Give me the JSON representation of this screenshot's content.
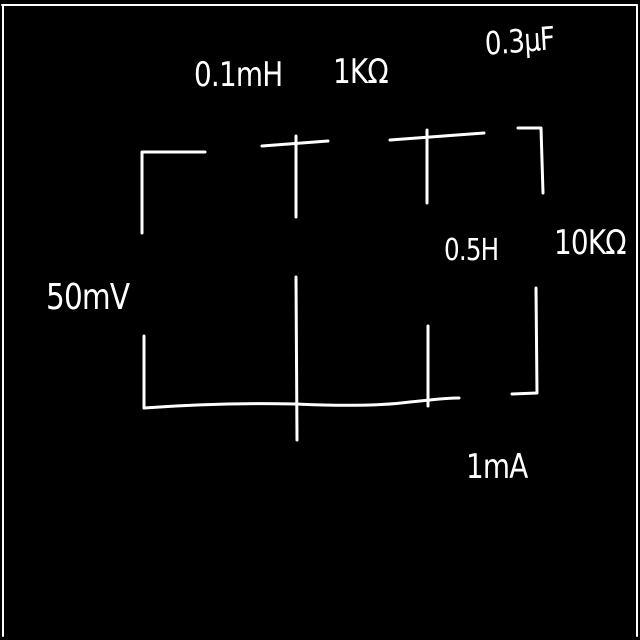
{
  "components": {
    "inductor_top": "0.1mH",
    "resistor_top": "1KΩ",
    "capacitor": "0.3μF",
    "voltage_source": "50mV",
    "inductor_mid": "0.5H",
    "resistor_right": "10KΩ",
    "current_source": "1mA"
  },
  "colors": {
    "background": "#000000",
    "ink": "#ffffff"
  }
}
